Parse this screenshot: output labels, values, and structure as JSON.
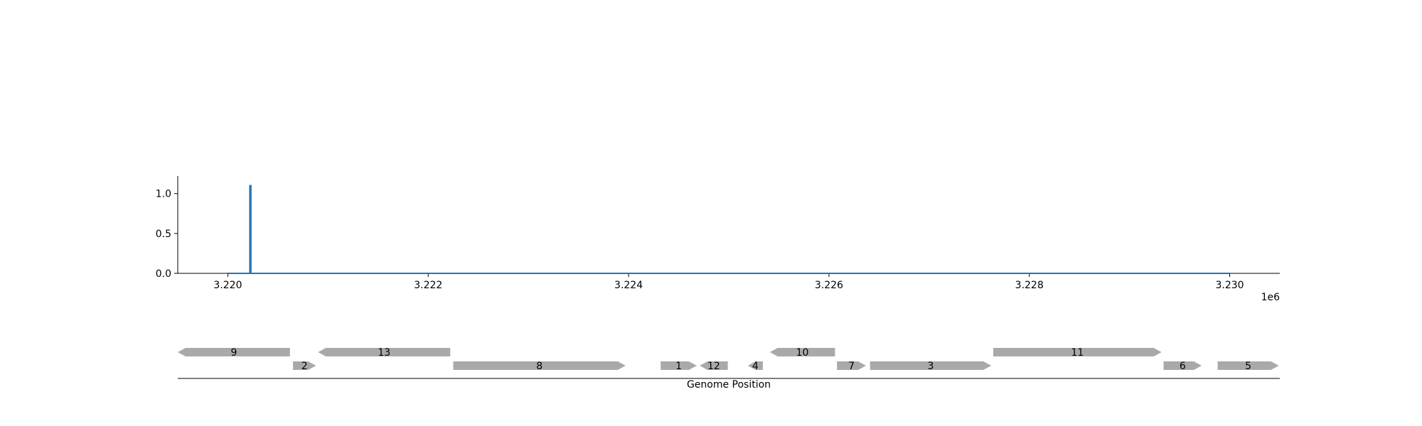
{
  "chart_data": [
    {
      "type": "line",
      "title": "",
      "xlabel": "",
      "ylabel": "",
      "x_offset_label": "1e6",
      "xlim": [
        3219500,
        3230500
      ],
      "ylim": [
        0,
        1.22
      ],
      "x_ticks": [
        3220000,
        3222000,
        3224000,
        3226000,
        3228000,
        3230000
      ],
      "x_tick_labels": [
        "3.220",
        "3.222",
        "3.224",
        "3.226",
        "3.228",
        "3.230"
      ],
      "y_ticks": [
        0,
        0.5,
        1.0
      ],
      "y_tick_labels": [
        "0.0",
        "0.5",
        "1.0"
      ],
      "grid": false,
      "color": "#1f77b4",
      "series": [
        {
          "x": [
            3220000,
            3220220,
            3220220,
            3220230,
            3220230,
            3230000
          ],
          "values": [
            0,
            0,
            1.1,
            1.1,
            0,
            0
          ]
        }
      ]
    },
    {
      "type": "gene-track",
      "xlabel": "Genome Position",
      "xlim": [
        3219500,
        3230500
      ],
      "color": "#a9a9a9",
      "genes": [
        {
          "label": "9",
          "start": 3219500,
          "end": 3220620,
          "strand": "-",
          "row": 0
        },
        {
          "label": "2",
          "start": 3220650,
          "end": 3220880,
          "strand": "+",
          "row": 1
        },
        {
          "label": "13",
          "start": 3220900,
          "end": 3222220,
          "strand": "-",
          "row": 0
        },
        {
          "label": "8",
          "start": 3222250,
          "end": 3223970,
          "strand": "+",
          "row": 1
        },
        {
          "label": "1",
          "start": 3224320,
          "end": 3224680,
          "strand": "+",
          "row": 1
        },
        {
          "label": "12",
          "start": 3224710,
          "end": 3224990,
          "strand": "-",
          "row": 1
        },
        {
          "label": "4",
          "start": 3225190,
          "end": 3225340,
          "strand": "-",
          "row": 1
        },
        {
          "label": "10",
          "start": 3225410,
          "end": 3226060,
          "strand": "-",
          "row": 0
        },
        {
          "label": "7",
          "start": 3226080,
          "end": 3226370,
          "strand": "+",
          "row": 1
        },
        {
          "label": "3",
          "start": 3226410,
          "end": 3227620,
          "strand": "+",
          "row": 1
        },
        {
          "label": "11",
          "start": 3227640,
          "end": 3229320,
          "strand": "+",
          "row": 0
        },
        {
          "label": "6",
          "start": 3229340,
          "end": 3229720,
          "strand": "+",
          "row": 1
        },
        {
          "label": "5",
          "start": 3229880,
          "end": 3230490,
          "strand": "+",
          "row": 1
        }
      ]
    }
  ]
}
